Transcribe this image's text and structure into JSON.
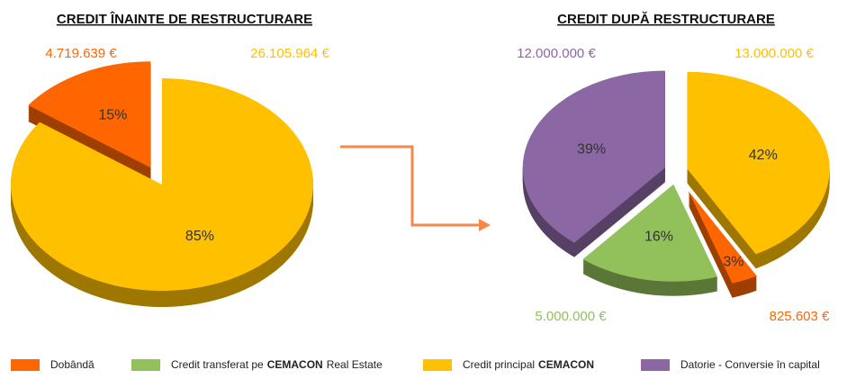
{
  "chart_data": [
    {
      "type": "pie",
      "title": "CREDIT ÎNAINTE DE RESTRUCTURARE",
      "values": [
        15,
        85
      ],
      "value_labels": [
        "15%",
        "85%"
      ],
      "colors": [
        "#ff6600",
        "#ffc000"
      ],
      "amount_labels": [
        "4.719.639 €",
        "26.105.964 €"
      ]
    },
    {
      "type": "pie",
      "title": "CREDIT DUPĂ RESTRUCTURARE",
      "values": [
        42,
        3,
        16,
        39
      ],
      "value_labels": [
        "42%",
        "3%",
        "16%",
        "39%"
      ],
      "colors": [
        "#ffc000",
        "#ff6600",
        "#92c05a",
        "#8b67a3"
      ],
      "amount_labels": [
        "13.000.000 €",
        "825.603 €",
        "5.000.000 €",
        "12.000.000 €"
      ]
    }
  ],
  "legend": [
    {
      "color": "#ff6600",
      "parts": [
        {
          "text": "Dobândă"
        }
      ]
    },
    {
      "color": "#92c05a",
      "parts": [
        {
          "text": "Credit transferat pe"
        },
        {
          "text": "CEMACON",
          "bold": true
        },
        {
          "text": "Real Estate"
        }
      ]
    },
    {
      "color": "#ffc000",
      "parts": [
        {
          "text": "Credit principal"
        },
        {
          "text": "CEMACON",
          "bold": true
        }
      ]
    },
    {
      "color": "#8b67a3",
      "parts": [
        {
          "text": "Datorie - Conversie în capital"
        }
      ]
    }
  ]
}
